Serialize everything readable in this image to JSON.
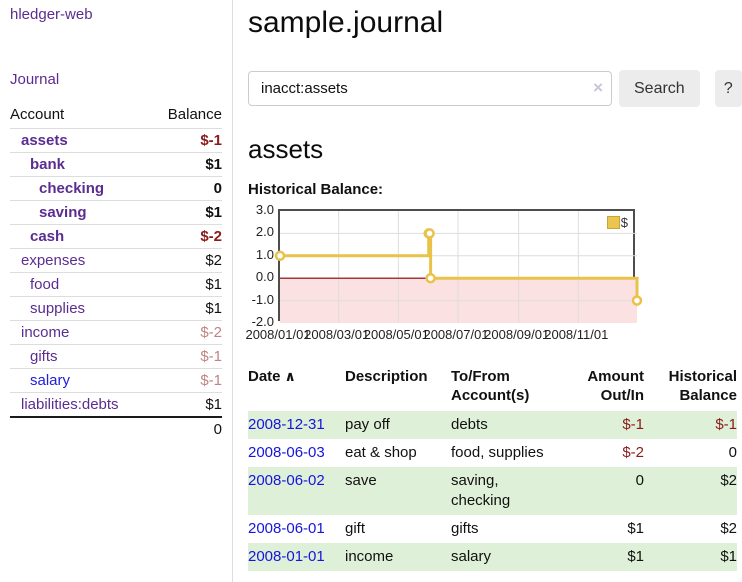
{
  "app": {
    "brand": "hledger-web"
  },
  "sidebar": {
    "nav": {
      "journal": "Journal"
    },
    "accounts_header": {
      "account": "Account",
      "balance": "Balance"
    },
    "accounts": [
      {
        "name": "assets",
        "balance": "$-1",
        "depth": 1,
        "bold": true,
        "name_color": "purple",
        "balance_class": "neg-strong"
      },
      {
        "name": "bank",
        "balance": "$1",
        "depth": 2,
        "bold": true,
        "name_color": "purple",
        "balance_class": "plain"
      },
      {
        "name": "checking",
        "balance": "0",
        "depth": 3,
        "bold": true,
        "name_color": "purple",
        "balance_class": "plain"
      },
      {
        "name": "saving",
        "balance": "$1",
        "depth": 3,
        "bold": true,
        "name_color": "purple",
        "balance_class": "plain"
      },
      {
        "name": "cash",
        "balance": "$-2",
        "depth": 2,
        "bold": true,
        "name_color": "purple",
        "balance_class": "neg-strong"
      },
      {
        "name": "expenses",
        "balance": "$2",
        "depth": 1,
        "bold": false,
        "name_color": "purple",
        "balance_class": "plain"
      },
      {
        "name": "food",
        "balance": "$1",
        "depth": 2,
        "bold": false,
        "name_color": "purple",
        "balance_class": "plain"
      },
      {
        "name": "supplies",
        "balance": "$1",
        "depth": 2,
        "bold": false,
        "name_color": "purple",
        "balance_class": "plain"
      },
      {
        "name": "income",
        "balance": "$-2",
        "depth": 1,
        "bold": false,
        "name_color": "purple",
        "balance_class": "neg-soft"
      },
      {
        "name": "gifts",
        "balance": "$-1",
        "depth": 2,
        "bold": false,
        "name_color": "purple",
        "balance_class": "neg-soft"
      },
      {
        "name": "salary",
        "balance": "$-1",
        "depth": 2,
        "bold": false,
        "name_color": "blue",
        "balance_class": "neg-soft"
      },
      {
        "name": "liabilities:debts",
        "balance": "$1",
        "depth": 1,
        "bold": false,
        "name_color": "purple",
        "balance_class": "plain"
      }
    ],
    "total": "0"
  },
  "header": {
    "title": "sample.journal"
  },
  "search": {
    "value": "inacct:assets",
    "clear_icon": "×",
    "search_label": "Search",
    "help_label": "?"
  },
  "account_page": {
    "title": "assets",
    "chart_label": "Historical Balance:"
  },
  "chart_data": {
    "type": "line",
    "title": "Historical Balance",
    "style": "step-after",
    "series": [
      {
        "name": "$",
        "color": "#e9c24a",
        "points": [
          {
            "x": "2008-01-01",
            "y": 1
          },
          {
            "x": "2008-06-01",
            "y": 2
          },
          {
            "x": "2008-06-02",
            "y": 2
          },
          {
            "x": "2008-06-03",
            "y": 0
          },
          {
            "x": "2008-12-31",
            "y": -1
          }
        ]
      }
    ],
    "xlim": [
      "2008-01-01",
      "2008-12-31"
    ],
    "ylim": [
      -2,
      3
    ],
    "y_ticks": [
      "3.0",
      "2.0",
      "1.0",
      "0.0",
      "-1.0",
      "-2.0"
    ],
    "x_ticks": [
      "2008/01/01",
      "2008/03/01",
      "2008/05/01",
      "2008/07/01",
      "2008/09/01",
      "2008/11/01"
    ],
    "legend": {
      "label": "$",
      "position": "top-right"
    },
    "grid": true,
    "negative_region_color": "#fbe1e1",
    "zero_line_color": "#8b0000",
    "grid_color": "#dddddd"
  },
  "register": {
    "columns": {
      "date": "Date",
      "sort_icon": "∧",
      "description": "Description",
      "accounts_line1": "To/From",
      "accounts_line2": "Account(s)",
      "amount_line1": "Amount",
      "amount_line2": "Out/In",
      "balance_line1": "Historical",
      "balance_line2": "Balance"
    },
    "rows": [
      {
        "date": "2008-12-31",
        "description": "pay off",
        "accounts": "debts",
        "amount": "$-1",
        "amount_negative": true,
        "balance": "$-1",
        "balance_negative": true,
        "shaded": true
      },
      {
        "date": "2008-06-03",
        "description": "eat & shop",
        "accounts": "food, supplies",
        "amount": "$-2",
        "amount_negative": true,
        "balance": "0",
        "balance_negative": false,
        "shaded": false
      },
      {
        "date": "2008-06-02",
        "description": "save",
        "accounts": "saving, checking",
        "amount": "0",
        "amount_negative": false,
        "balance": "$2",
        "balance_negative": false,
        "shaded": true
      },
      {
        "date": "2008-06-01",
        "description": "gift",
        "accounts": "gifts",
        "amount": "$1",
        "amount_negative": false,
        "balance": "$2",
        "balance_negative": false,
        "shaded": false
      },
      {
        "date": "2008-01-01",
        "description": "income",
        "accounts": "salary",
        "amount": "$1",
        "amount_negative": false,
        "balance": "$1",
        "balance_negative": false,
        "shaded": true
      }
    ]
  }
}
